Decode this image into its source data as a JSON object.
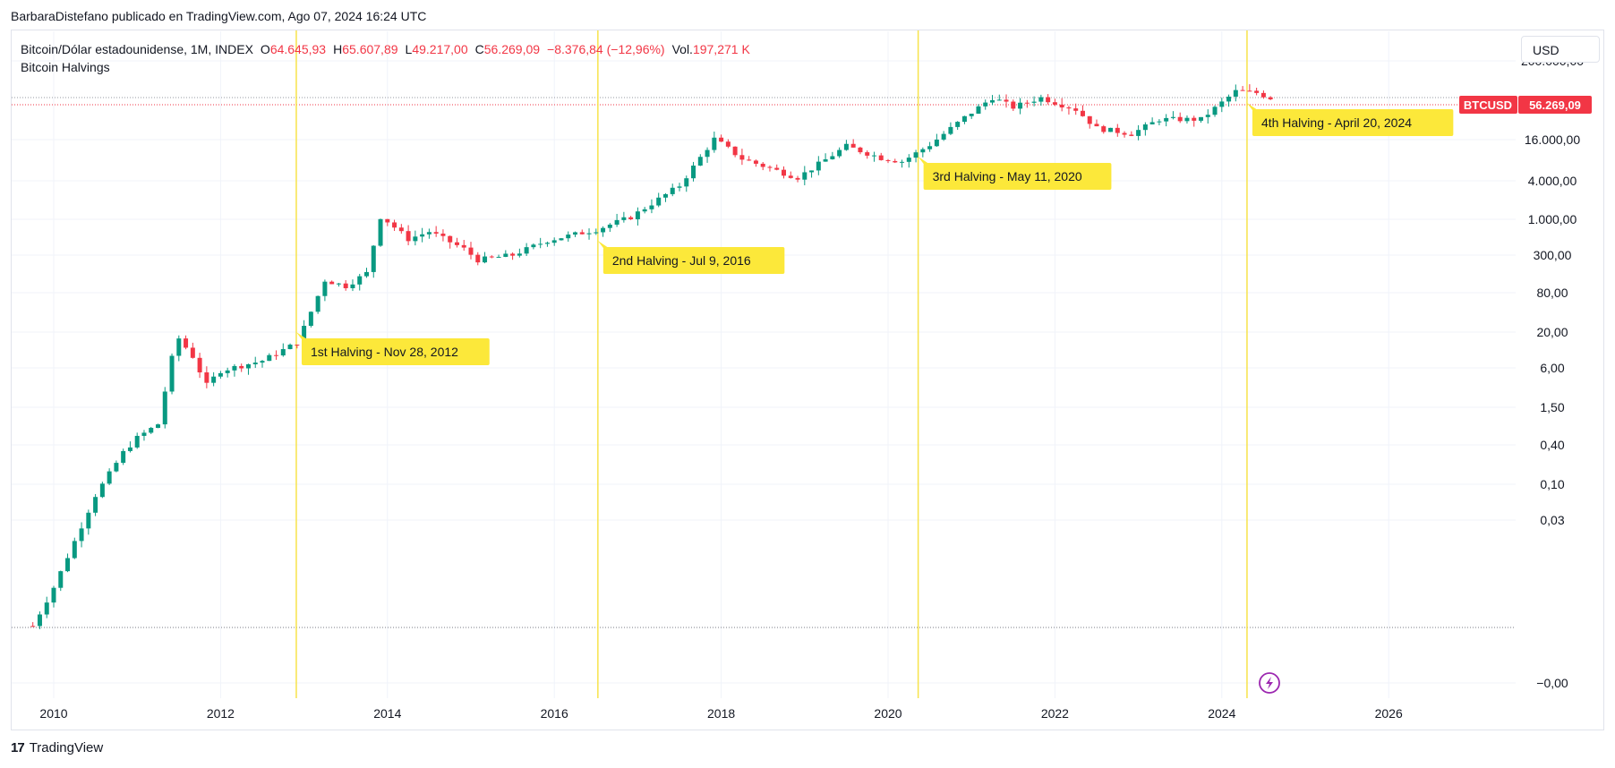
{
  "attribution": "BarbaraDistefano publicado en TradingView.com, Ago 07, 2024 16:24 UTC",
  "legend": {
    "symbol": "Bitcoin/Dólar estadounidense, 1M, INDEX",
    "o_label": "O",
    "o_value": "64.645,93",
    "h_label": "H",
    "h_value": "65.607,89",
    "l_label": "L",
    "l_value": "49.217,00",
    "c_label": "C",
    "c_value": "56.269,09",
    "change": "−8.376,84 (−12,96%)",
    "vol_label": "Vol.",
    "vol_value": "197,271 K",
    "indicator": "Bitcoin Halvings"
  },
  "currency_button": "USD",
  "footer": {
    "logo": "17",
    "brand": "TradingView"
  },
  "colors": {
    "up": "#089981",
    "down": "#f23645",
    "halving_line": "#f7e34b",
    "halving_label_bg": "#fce83a",
    "bolt": "#9c27b0"
  },
  "chart_data": {
    "type": "candlestick",
    "y_scale": "log",
    "y_tick_labels": [
      "200.000,00",
      "16.000,00",
      "4.000,00",
      "1.000,00",
      "300,00",
      "80,00",
      "20,00",
      "6,00",
      "1,50",
      "0,40",
      "0,10",
      "0,03",
      "−0,00"
    ],
    "x_tick_labels": [
      "2010",
      "2012",
      "2014",
      "2016",
      "2018",
      "2020",
      "2022",
      "2024",
      "2026"
    ],
    "price_label": {
      "symbol": "BTCUSD",
      "value": "56.269,09"
    },
    "halvings": [
      {
        "date": "2012-11-28",
        "label": "1st Halving - Nov 28, 2012"
      },
      {
        "date": "2016-07-09",
        "label": "2nd Halving - Jul 9, 2016"
      },
      {
        "date": "2020-05-11",
        "label": "3rd Halving - May 11, 2020"
      },
      {
        "date": "2024-04-20",
        "label": "4th Halving - April 20, 2024"
      }
    ],
    "monthly_close": [
      {
        "t": 2009.75,
        "c": 0.0008
      },
      {
        "t": 2010.0,
        "c": 0.003
      },
      {
        "t": 2010.5,
        "c": 0.07
      },
      {
        "t": 2010.83,
        "c": 0.3
      },
      {
        "t": 2011.0,
        "c": 0.5
      },
      {
        "t": 2011.25,
        "c": 0.8
      },
      {
        "t": 2011.42,
        "c": 8
      },
      {
        "t": 2011.5,
        "c": 15
      },
      {
        "t": 2011.67,
        "c": 8
      },
      {
        "t": 2011.83,
        "c": 3
      },
      {
        "t": 2012.0,
        "c": 5
      },
      {
        "t": 2012.5,
        "c": 7
      },
      {
        "t": 2012.92,
        "c": 13
      },
      {
        "t": 2013.25,
        "c": 110
      },
      {
        "t": 2013.5,
        "c": 90
      },
      {
        "t": 2013.75,
        "c": 140
      },
      {
        "t": 2013.92,
        "c": 1000
      },
      {
        "t": 2014.25,
        "c": 450
      },
      {
        "t": 2014.5,
        "c": 580
      },
      {
        "t": 2014.92,
        "c": 320
      },
      {
        "t": 2015.08,
        "c": 220
      },
      {
        "t": 2015.5,
        "c": 260
      },
      {
        "t": 2015.92,
        "c": 430
      },
      {
        "t": 2016.5,
        "c": 620
      },
      {
        "t": 2016.92,
        "c": 960
      },
      {
        "t": 2017.5,
        "c": 2800
      },
      {
        "t": 2017.83,
        "c": 10000
      },
      {
        "t": 2017.92,
        "c": 14000
      },
      {
        "t": 2018.25,
        "c": 7000
      },
      {
        "t": 2018.83,
        "c": 4000
      },
      {
        "t": 2018.92,
        "c": 3700
      },
      {
        "t": 2019.5,
        "c": 10800
      },
      {
        "t": 2019.92,
        "c": 7200
      },
      {
        "t": 2020.17,
        "c": 6400
      },
      {
        "t": 2020.5,
        "c": 11300
      },
      {
        "t": 2020.92,
        "c": 29000
      },
      {
        "t": 2021.25,
        "c": 57000
      },
      {
        "t": 2021.5,
        "c": 41000
      },
      {
        "t": 2021.83,
        "c": 57000
      },
      {
        "t": 2022.25,
        "c": 38000
      },
      {
        "t": 2022.5,
        "c": 20000
      },
      {
        "t": 2022.92,
        "c": 16500
      },
      {
        "t": 2023.25,
        "c": 27000
      },
      {
        "t": 2023.75,
        "c": 27000
      },
      {
        "t": 2024.17,
        "c": 71000
      },
      {
        "t": 2024.42,
        "c": 67000
      },
      {
        "t": 2024.58,
        "c": 56269
      }
    ]
  }
}
